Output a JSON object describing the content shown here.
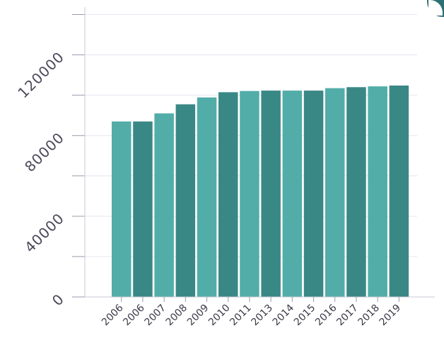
{
  "chart_data": {
    "type": "bar",
    "title": "",
    "xlabel": "",
    "ylabel": "",
    "categories": [
      "2006",
      "2006",
      "2007",
      "2008",
      "2009",
      "2010",
      "2011",
      "2013",
      "2014",
      "2015",
      "2016",
      "2017",
      "2018",
      "2019"
    ],
    "values": [
      87000,
      87000,
      91000,
      95500,
      98900,
      101500,
      102100,
      102300,
      102300,
      102300,
      103500,
      104000,
      104400,
      104800
    ],
    "ylim": [
      0,
      143000
    ],
    "yticks": [
      0,
      20000,
      40000,
      60000,
      80000,
      100000,
      120000,
      140000
    ],
    "ytick_labels": [
      "0",
      "",
      "40000",
      "",
      "80000",
      "",
      "120000",
      ""
    ],
    "grid": true,
    "colors": [
      "#52ada8",
      "#3a8886"
    ]
  }
}
